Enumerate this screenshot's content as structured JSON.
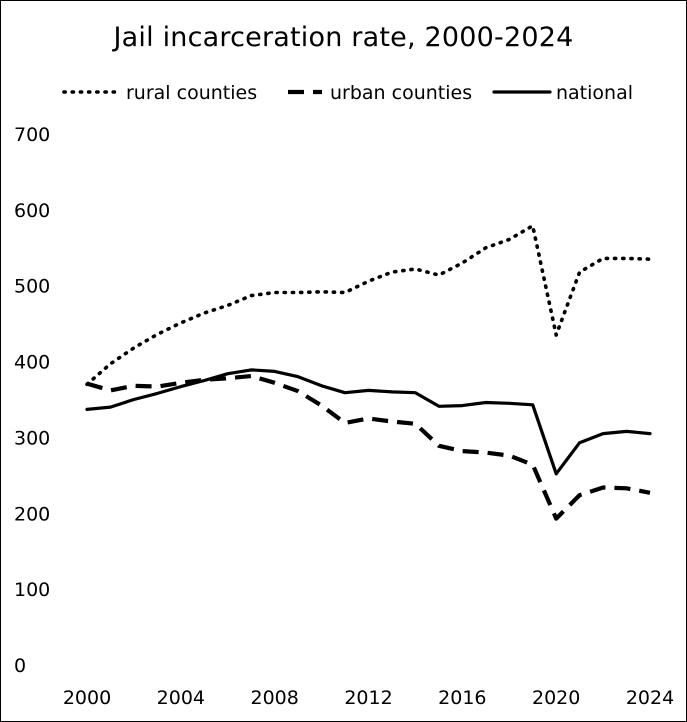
{
  "chart_data": {
    "type": "line",
    "title": "Jail incarceration rate, 2000-2024",
    "xlabel": "",
    "ylabel": "",
    "x": [
      2000,
      2001,
      2002,
      2003,
      2004,
      2005,
      2006,
      2007,
      2008,
      2009,
      2010,
      2011,
      2012,
      2013,
      2014,
      2015,
      2016,
      2017,
      2018,
      2019,
      2020,
      2021,
      2022,
      2023,
      2024
    ],
    "xlim": [
      2000,
      2024
    ],
    "ylim": [
      0,
      700
    ],
    "x_ticks": [
      "2000",
      "2004",
      "2008",
      "2012",
      "2016",
      "2020",
      "2024"
    ],
    "y_ticks": [
      "0",
      "100",
      "200",
      "300",
      "400",
      "500",
      "600",
      "700"
    ],
    "grid": false,
    "legend_position": "top",
    "series": [
      {
        "name": "rural counties",
        "style": "dotted",
        "color": "#000000",
        "values": [
          370,
          397,
          418,
          436,
          451,
          464,
          474,
          487,
          491,
          491,
          492,
          491,
          506,
          518,
          522,
          514,
          530,
          550,
          561,
          579,
          435,
          518,
          536,
          536,
          535
        ]
      },
      {
        "name": "urban counties",
        "style": "dashed",
        "color": "#000000",
        "values": [
          371,
          362,
          368,
          367,
          372,
          376,
          378,
          381,
          372,
          361,
          342,
          319,
          325,
          321,
          318,
          289,
          282,
          280,
          276,
          264,
          193,
          224,
          234,
          233,
          227
        ]
      },
      {
        "name": "national",
        "style": "solid",
        "color": "#000000",
        "values": [
          337,
          340,
          350,
          358,
          367,
          375,
          384,
          389,
          387,
          380,
          368,
          359,
          362,
          360,
          359,
          341,
          342,
          346,
          345,
          343,
          252,
          293,
          305,
          308,
          305
        ]
      }
    ]
  }
}
